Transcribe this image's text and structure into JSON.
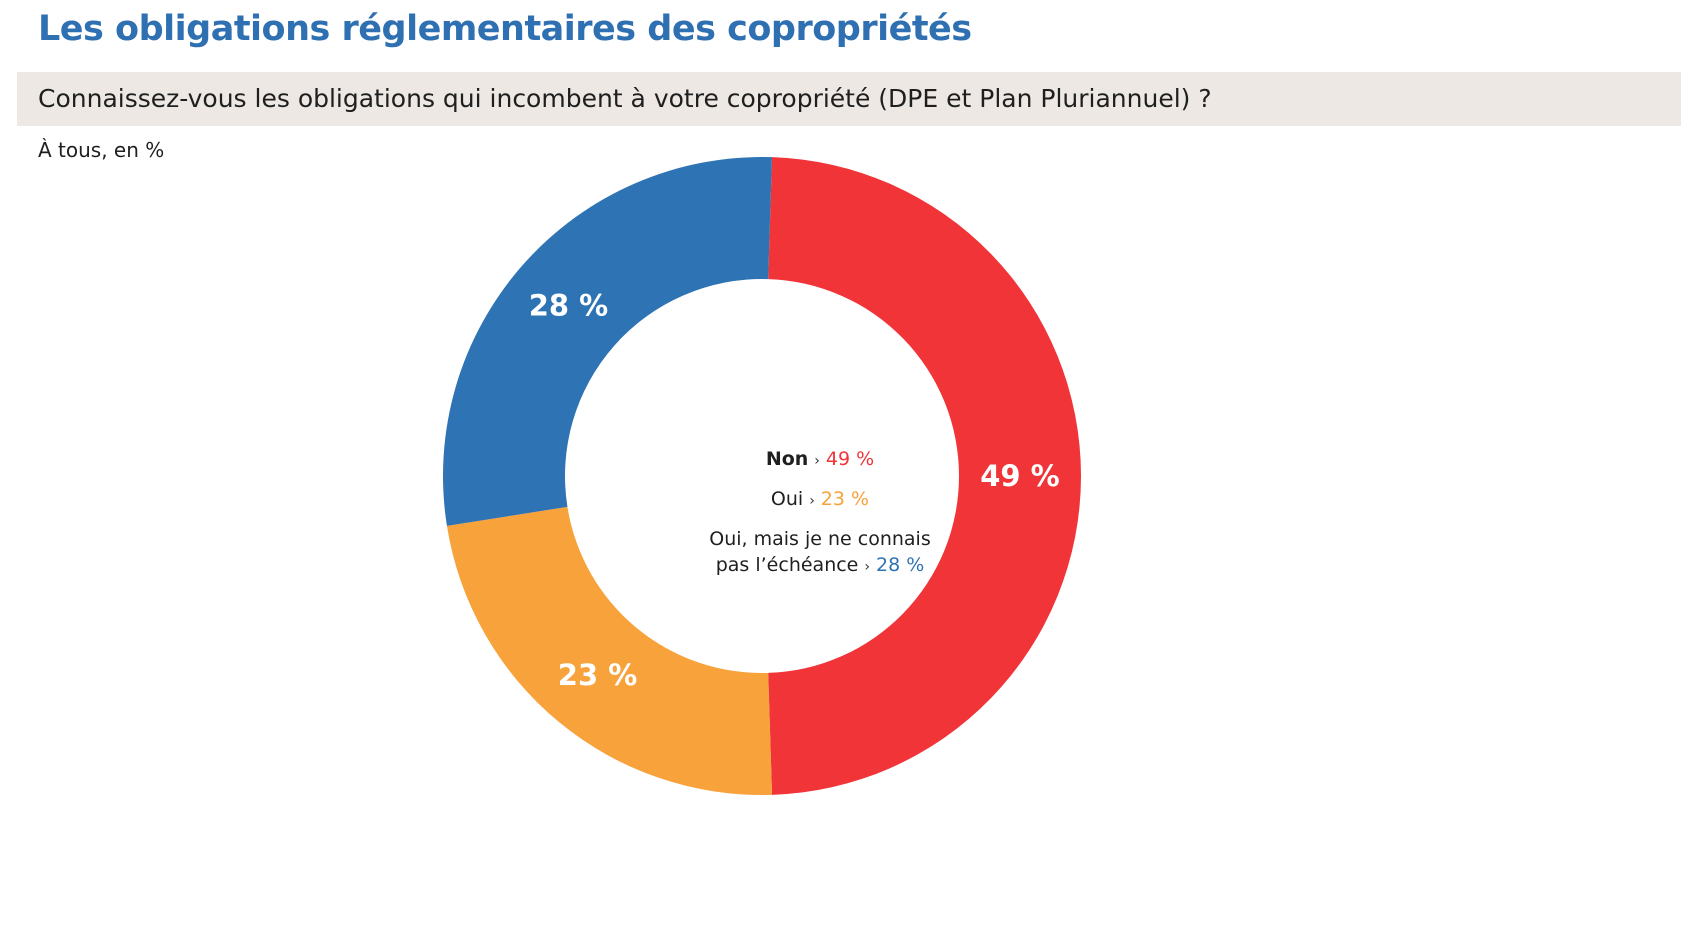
{
  "header": {
    "title": "Les obligations réglementaires des copropriétés",
    "title_color": "#2e70b2",
    "question": "Connaissez-vous les obligations qui incombent à votre copropriété (DPE et Plan Pluriannuel) ?",
    "question_bg": "#ede8e3",
    "base_note": "À tous, en %"
  },
  "legend": {
    "separator": "›",
    "items": [
      {
        "name": "Non",
        "value_text": "49 %",
        "color": "#f03438"
      },
      {
        "name": "Oui",
        "value_text": "23 %",
        "color": "#f8a23c"
      },
      {
        "name_line1": "Oui, mais je ne connais",
        "name_line2": "pas l’échéance",
        "value_text": "28 %",
        "color": "#2e73b3"
      }
    ]
  },
  "chart_data": {
    "type": "pie",
    "donut": true,
    "title": "",
    "categories": [
      "Non",
      "Oui",
      "Oui, mais je ne connais pas l’échéance"
    ],
    "values": [
      49,
      23,
      28
    ],
    "unit": "%",
    "data_labels": [
      "49 %",
      "23 %",
      "28 %"
    ],
    "colors": [
      "#f03438",
      "#f8a23c",
      "#2e73b3"
    ],
    "start_angle_deg": -88.2,
    "direction": "clockwise",
    "legend_position": "center"
  }
}
